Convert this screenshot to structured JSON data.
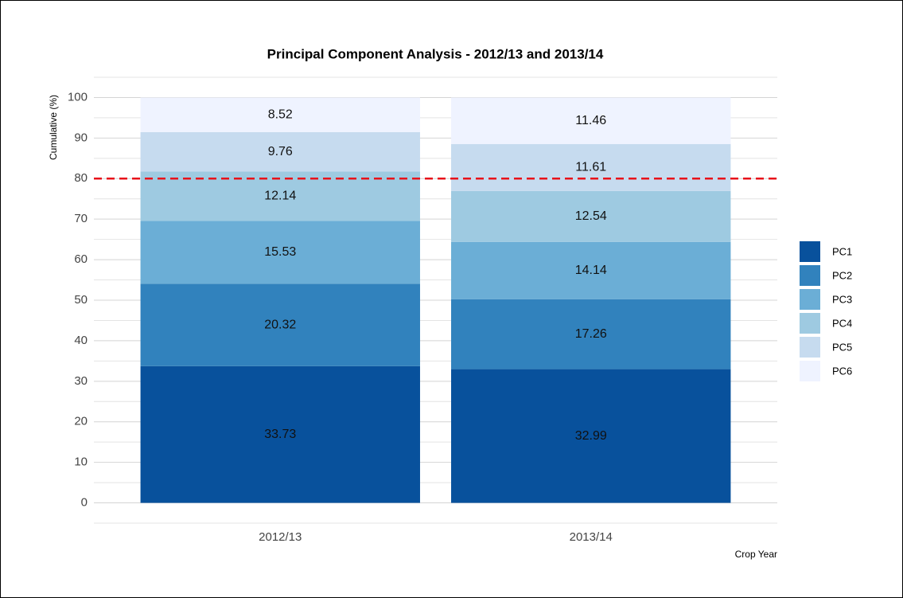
{
  "chart_data": {
    "type": "stacked_bar",
    "title": "Principal Component Analysis - 2012/13 and 2013/14",
    "y_label": "Cumulative (%)",
    "x_label": "Crop Year",
    "categories": [
      "2012/13",
      "2013/14"
    ],
    "series": [
      {
        "name": "PC1",
        "color": "#08519c",
        "values": [
          33.73,
          32.99
        ]
      },
      {
        "name": "PC2",
        "color": "#3182bd",
        "values": [
          20.32,
          17.26
        ]
      },
      {
        "name": "PC3",
        "color": "#6baed6",
        "values": [
          15.53,
          14.14
        ]
      },
      {
        "name": "PC4",
        "color": "#9ecae1",
        "values": [
          12.14,
          12.54
        ]
      },
      {
        "name": "PC5",
        "color": "#c6dbef",
        "values": [
          9.76,
          11.61
        ]
      },
      {
        "name": "PC6",
        "color": "#eff3ff",
        "values": [
          8.52,
          11.46
        ]
      }
    ],
    "ylim": [
      -5,
      105
    ],
    "yticks": [
      0,
      10,
      20,
      30,
      40,
      50,
      60,
      70,
      80,
      90,
      100
    ],
    "grid": true,
    "reference_line": 80,
    "reference_line_color": "#e8121a",
    "legend": "right"
  }
}
